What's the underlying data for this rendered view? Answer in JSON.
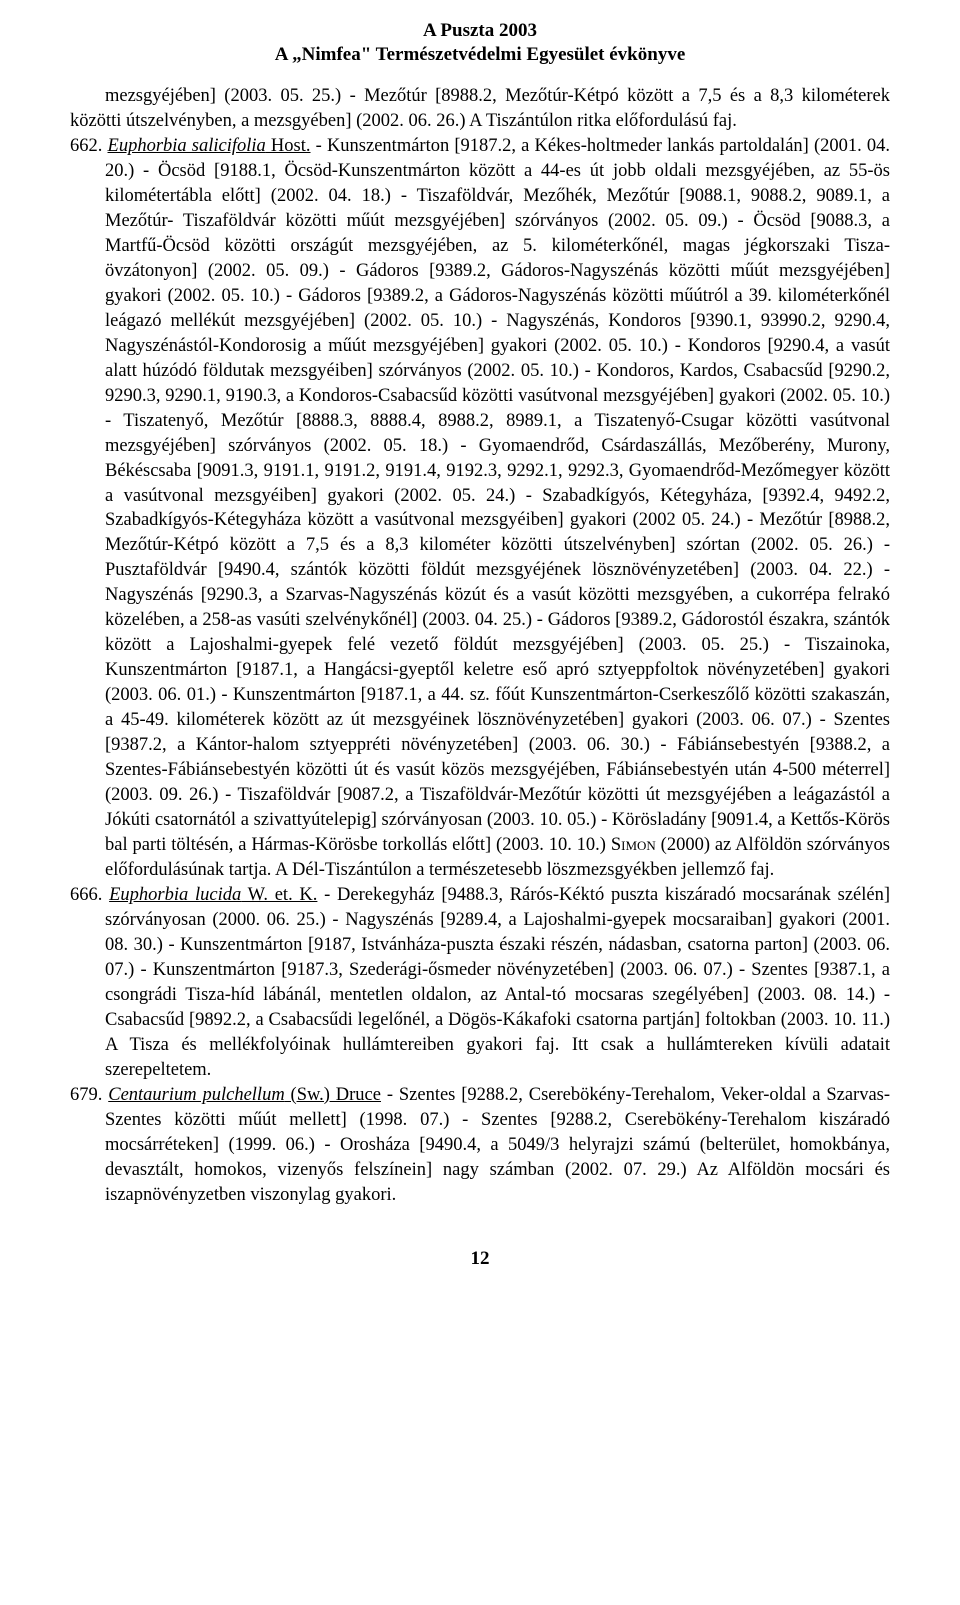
{
  "header": {
    "title": "A Puszta 2003",
    "subtitle": "A „Nimfea\" Természetvédelmi Egyesület évkönyve"
  },
  "continuation": "mezsgyéjében] (2003. 05. 25.) - Mezőtúr [8988.2, Mezőtúr-Kétpó között a 7,5 és a 8,3 kilométerek közötti útszelvényben, a mezsgyében] (2002. 06. 26.) A Tiszántúlon ritka előfordulású faj.",
  "entry662": {
    "num": "662.",
    "speciesItalic": "Euphorbia salicifolia",
    "authorPlain": " Host.",
    "body": " - Kunszentmárton [9187.2, a Kékes-holtmeder lankás partoldalán] (2001. 04. 20.) - Öcsöd [9188.1, Öcsöd-Kunszentmárton között a 44-es út jobb oldali mezsgyéjében, az 55-ös kilométertábla előtt] (2002. 04. 18.) - Tiszaföldvár, Mezőhék, Mezőtúr [9088.1, 9088.2, 9089.1, a Mezőtúr- Tiszaföldvár közötti műút mezsgyéjében] szórványos (2002. 05. 09.) - Öcsöd [9088.3, a Martfű-Öcsöd közötti országút mezsgyéjében, az 5. kilométerkőnél, magas jégkorszaki Tisza-övzátonyon] (2002. 05. 09.) - Gádoros [9389.2, Gádoros-Nagyszénás közötti műút mezsgyéjében] gyakori (2002. 05. 10.) - Gádoros [9389.2, a Gádoros-Nagyszénás közötti műútról a 39. kilométerkőnél leágazó mellékút mezsgyéjében] (2002. 05. 10.) - Nagyszénás, Kondoros [9390.1, 93990.2, 9290.4, Nagyszénástól-Kondorosig a műút mezsgyéjében] gyakori (2002. 05. 10.) - Kondoros [9290.4, a vasút alatt húzódó földutak mezsgyéiben] szórványos (2002. 05. 10.) - Kondoros, Kardos, Csabacsűd [9290.2, 9290.3, 9290.1, 9190.3, a Kondoros-Csabacsűd közötti vasútvonal mezsgyéjében] gyakori (2002. 05. 10.) - Tiszatenyő, Mezőtúr [8888.3, 8888.4, 8988.2, 8989.1, a Tiszatenyő-Csugar közötti vasútvonal mezsgyéjében] szórványos (2002. 05. 18.) - Gyomaendrőd, Csárdaszállás, Mezőberény, Murony, Békéscsaba [9091.3, 9191.1, 9191.2, 9191.4, 9192.3, 9292.1, 9292.3, Gyomaendrőd-Mezőmegyer között a vasútvonal mezsgyéiben] gyakori (2002. 05. 24.) - Szabadkígyós, Kétegyháza, [9392.4, 9492.2, Szabadkígyós-Kétegyháza között a vasútvonal mezsgyéiben] gyakori (2002 05. 24.) - Mezőtúr [8988.2, Mezőtúr-Kétpó között a 7,5 és a 8,3 kilométer közötti útszelvényben] szórtan (2002. 05. 26.) - Pusztaföldvár [9490.4, szántók közötti földút mezsgyéjének lösznövényzetében] (2003. 04. 22.) - Nagyszénás [9290.3, a Szarvas-Nagyszénás közút és a vasút közötti mezsgyében, a cukorrépa felrakó közelében, a 258-as vasúti szelvénykőnél] (2003. 04. 25.) - Gádoros [9389.2, Gádorostól északra, szántók között a Lajoshalmi-gyepek felé vezető földút mezsgyéjében] (2003. 05. 25.) - Tiszainoka, Kunszentmárton [9187.1, a Hangácsi-gyeptől keletre eső apró sztyeppfoltok növényzetében] gyakori (2003. 06. 01.) - Kunszentmárton [9187.1, a 44. sz. főút Kunszentmárton-Cserkeszőlő közötti szakaszán, a 45-49. kilométerek között az út mezsgyéinek lösznövényzetében] gyakori (2003. 06. 07.) - Szentes [9387.2, a Kántor-halom sztyeppréti növényzetében] (2003. 06. 30.) - Fábiánsebestyén [9388.2, a Szentes-Fábiánsebestyén közötti út és vasút közös mezsgyéjében, Fábiánsebestyén után 4-500 méterrel] (2003. 09. 26.) - Tiszaföldvár [9087.2, a Tiszaföldvár-Mezőtúr közötti út mezsgyéjében a leágazástól a Jókúti csatornától a szivattyútelepig] szórványosan (2003. 10. 05.) - Körösladány [9091.4, a Kettős-Körös bal parti töltésén, a Hármas-Körösbe torkollás előtt] (2003. 10. 10.) ",
    "simon": "Simon",
    "body2": " (2000) az Alföldön szórványos előfordulásúnak tartja. A Dél-Tiszántúlon a természetesebb löszmezsgyékben jellemző faj."
  },
  "entry666": {
    "num": "666.",
    "speciesItalic": "Euphorbia lucida",
    "authorPlain": " W. et. K.",
    "body": " - Derekegyház [9488.3, Rárós-Kéktó puszta kiszáradó mocsarának szélén] szórványosan (2000. 06. 25.) - Nagyszénás [9289.4, a Lajoshalmi-gyepek mocsaraiban] gyakori (2001. 08. 30.) - Kunszentmárton [9187, Istvánháza-puszta északi részén, nádasban, csatorna parton] (2003. 06. 07.) - Kunszentmárton [9187.3, Szederági-ősmeder növényzetében] (2003. 06. 07.) - Szentes [9387.1, a csongrádi Tisza-híd lábánál, mentetlen oldalon, az Antal-tó mocsaras szegélyében] (2003. 08. 14.) - Csabacsűd [9892.2, a Csabacsűdi legelőnél, a Dögös-Kákafoki csatorna partján] foltokban (2003. 10. 11.) A Tisza és mellékfolyóinak hullámtereiben gyakori faj. Itt csak a hullámtereken kívüli adatait szerepeltetem."
  },
  "entry679": {
    "num": "679.",
    "speciesItalic": "Centaurium pulchellum",
    "authorPlain": " (Sw.) Druce",
    "body": " - Szentes [9288.2, Cserebökény-Terehalom, Veker-oldal a Szarvas-Szentes közötti műút mellett] (1998. 07.) - Szentes [9288.2, Cserebökény-Terehalom kiszáradó mocsárréteken] (1999. 06.) - Orosháza [9490.4, a 5049/3 helyrajzi számú (belterület, homokbánya, devasztált, homokos, vizenyős felszínein] nagy számban (2002. 07. 29.) Az Alföldön mocsári és iszapnövényzetben viszonylag gyakori."
  },
  "pageNumber": "12"
}
